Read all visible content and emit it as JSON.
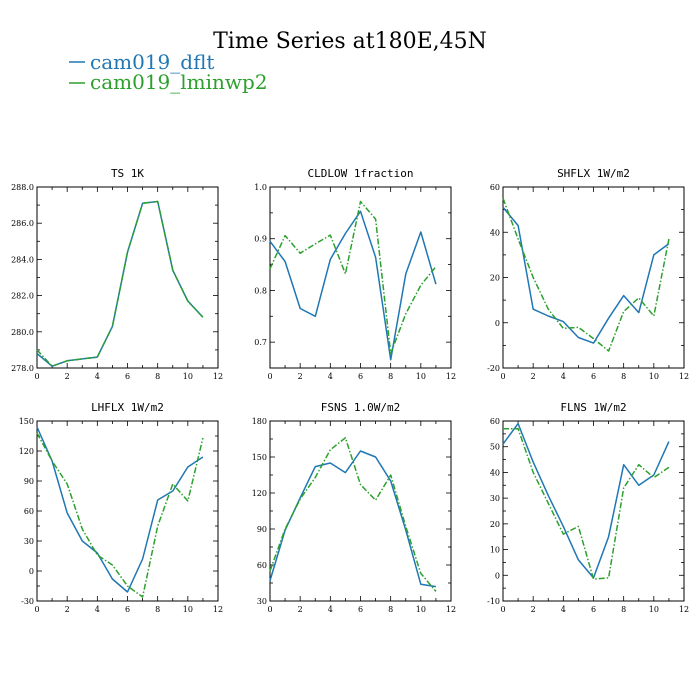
{
  "figure": {
    "title": "Time Series at180E,45N",
    "legend": [
      {
        "label": "cam019_dflt",
        "color": "#1f77b4",
        "dash": "solid"
      },
      {
        "label": "cam019_lminwp2",
        "color": "#2ca02c",
        "dash": "dashdot"
      }
    ]
  },
  "chart_data": [
    {
      "type": "line",
      "title": "TS   1K",
      "xlim": [
        0,
        12
      ],
      "ylim": [
        278,
        288
      ],
      "xticks": [
        0,
        2,
        4,
        6,
        8,
        10,
        12
      ],
      "yticks": [
        278,
        280,
        282,
        284,
        286,
        288
      ],
      "yfmt": 1,
      "x": [
        0,
        1,
        2,
        3,
        4,
        5,
        6,
        7,
        8,
        9,
        10,
        11
      ],
      "series": [
        {
          "name": "cam019_dflt",
          "values": [
            278.8,
            278.1,
            278.4,
            278.5,
            278.6,
            280.3,
            284.4,
            287.1,
            287.2,
            283.4,
            281.7,
            280.8
          ]
        },
        {
          "name": "cam019_lminwp2",
          "values": [
            279.0,
            278.1,
            278.4,
            278.5,
            278.6,
            280.3,
            284.4,
            287.1,
            287.2,
            283.4,
            281.7,
            280.8
          ]
        }
      ]
    },
    {
      "type": "line",
      "title": "CLDLOW   1fraction",
      "xlim": [
        0,
        12
      ],
      "ylim": [
        0.65,
        1.0
      ],
      "xticks": [
        0,
        2,
        4,
        6,
        8,
        10,
        12
      ],
      "yticks": [
        0.7,
        0.8,
        0.9,
        1.0
      ],
      "yfmt": 1,
      "x": [
        0,
        1,
        2,
        3,
        4,
        5,
        6,
        7,
        8,
        9,
        10,
        11
      ],
      "series": [
        {
          "name": "cam019_dflt",
          "values": [
            0.895,
            0.856,
            0.765,
            0.75,
            0.86,
            0.91,
            0.953,
            0.864,
            0.666,
            0.832,
            0.913,
            0.812
          ]
        },
        {
          "name": "cam019_lminwp2",
          "values": [
            0.842,
            0.906,
            0.872,
            0.89,
            0.907,
            0.832,
            0.972,
            0.938,
            0.678,
            0.755,
            0.81,
            0.846
          ]
        }
      ]
    },
    {
      "type": "line",
      "title": "SHFLX   1W/m2",
      "xlim": [
        0,
        12
      ],
      "ylim": [
        -20,
        60
      ],
      "xticks": [
        0,
        2,
        4,
        6,
        8,
        10,
        12
      ],
      "yticks": [
        -20,
        0,
        20,
        40,
        60
      ],
      "yfmt": 0,
      "x": [
        0,
        1,
        2,
        3,
        4,
        5,
        6,
        7,
        8,
        9,
        10,
        11
      ],
      "series": [
        {
          "name": "cam019_dflt",
          "values": [
            51,
            43,
            6,
            3,
            0.5,
            -6.5,
            -9,
            2,
            12,
            4.5,
            30,
            35
          ]
        },
        {
          "name": "cam019_lminwp2",
          "values": [
            55,
            37,
            20,
            6,
            -2.5,
            -2,
            -7,
            -12.5,
            5,
            11,
            3,
            37
          ]
        }
      ]
    },
    {
      "type": "line",
      "title": "LHFLX   1W/m2",
      "xlim": [
        0,
        12
      ],
      "ylim": [
        -30,
        150
      ],
      "xticks": [
        0,
        2,
        4,
        6,
        8,
        10,
        12
      ],
      "yticks": [
        -30,
        0,
        30,
        60,
        90,
        120,
        150
      ],
      "yfmt": 0,
      "x": [
        0,
        1,
        2,
        3,
        4,
        5,
        6,
        7,
        8,
        9,
        10,
        11
      ],
      "series": [
        {
          "name": "cam019_dflt",
          "values": [
            144,
            110,
            58,
            30,
            18,
            -8,
            -21,
            12,
            71,
            80,
            104,
            114
          ]
        },
        {
          "name": "cam019_lminwp2",
          "values": [
            138,
            110,
            87,
            42,
            16,
            6,
            -15,
            -26,
            45,
            87,
            70,
            133
          ]
        }
      ]
    },
    {
      "type": "line",
      "title": "FSNS   1.0W/m2",
      "xlim": [
        0,
        12
      ],
      "ylim": [
        30,
        180
      ],
      "xticks": [
        0,
        2,
        4,
        6,
        8,
        10,
        12
      ],
      "yticks": [
        30,
        60,
        90,
        120,
        150,
        180
      ],
      "yfmt": 0,
      "x": [
        0,
        1,
        2,
        3,
        4,
        5,
        6,
        7,
        8,
        9,
        10,
        11
      ],
      "series": [
        {
          "name": "cam019_dflt",
          "values": [
            47,
            89,
            116,
            142,
            145,
            137,
            155,
            150,
            130,
            89,
            44,
            42
          ]
        },
        {
          "name": "cam019_lminwp2",
          "values": [
            55,
            90,
            115,
            133,
            156,
            166,
            127,
            114,
            135,
            92,
            53,
            38
          ]
        }
      ]
    },
    {
      "type": "line",
      "title": "FLNS   1W/m2",
      "xlim": [
        0,
        12
      ],
      "ylim": [
        -10,
        60
      ],
      "xticks": [
        0,
        2,
        4,
        6,
        8,
        10,
        12
      ],
      "yticks": [
        -10,
        0,
        10,
        20,
        30,
        40,
        50,
        60
      ],
      "yfmt": 0,
      "x": [
        0,
        1,
        2,
        3,
        4,
        5,
        6,
        7,
        8,
        9,
        10,
        11
      ],
      "series": [
        {
          "name": "cam019_dflt",
          "values": [
            51,
            59,
            44,
            31,
            19,
            6,
            -1,
            15,
            43,
            35,
            39,
            52
          ]
        },
        {
          "name": "cam019_lminwp2",
          "values": [
            57,
            57,
            40,
            28,
            16,
            19,
            -1.5,
            -1,
            34,
            43,
            38,
            42
          ]
        }
      ]
    }
  ]
}
